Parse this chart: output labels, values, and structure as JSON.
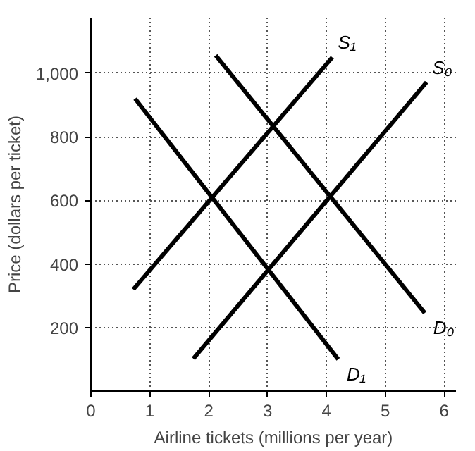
{
  "chart_data": {
    "type": "line",
    "xlabel": "Airline tickets (millions per year)",
    "ylabel": "Price (dollars per ticket)",
    "xlim": [
      0,
      6.2
    ],
    "ylim": [
      0,
      1175
    ],
    "xticks": [
      0,
      1,
      2,
      3,
      4,
      5,
      6
    ],
    "yticks": [
      200,
      400,
      600,
      800,
      {
        "value": 1000,
        "label": "1,000"
      }
    ],
    "grid": true,
    "line_style": "solid",
    "marker": "none",
    "series": [
      {
        "name": "S₁",
        "color": "#000000",
        "x": [
          0.72,
          4.1
        ],
        "values": [
          320,
          1050
        ]
      },
      {
        "name": "S₀",
        "color": "#000000",
        "x": [
          1.74,
          5.7
        ],
        "values": [
          102,
          972
        ]
      },
      {
        "name": "D₀",
        "color": "#000000",
        "x": [
          2.12,
          5.67
        ],
        "values": [
          1056,
          246
        ]
      },
      {
        "name": "D₁",
        "color": "#000000",
        "x": [
          0.75,
          4.2
        ],
        "values": [
          920,
          100
        ]
      }
    ]
  }
}
